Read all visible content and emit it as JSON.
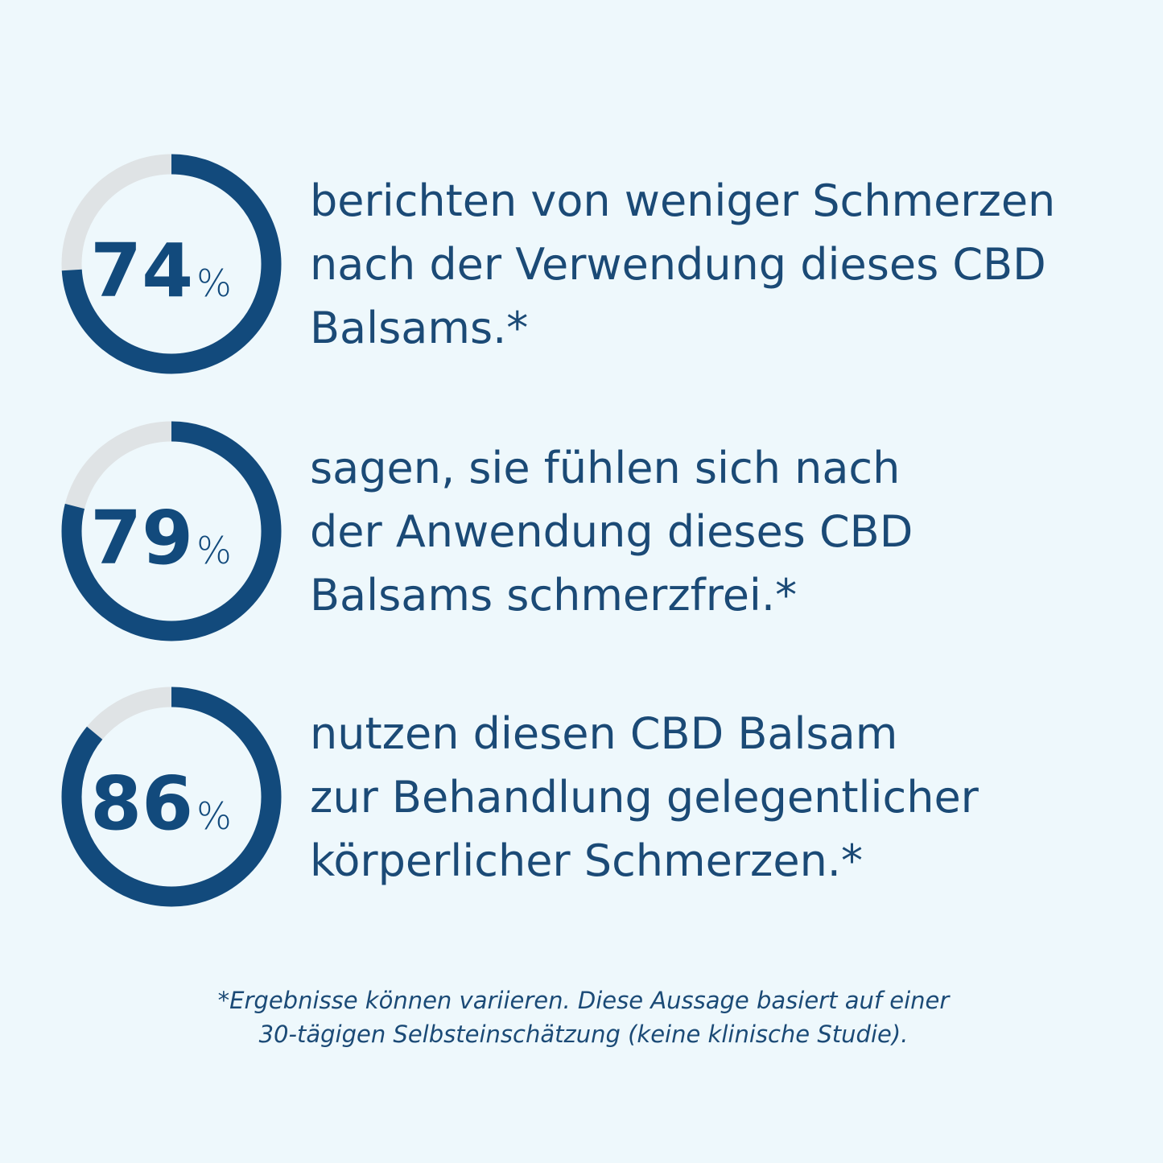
{
  "stats": [
    {
      "value": 74,
      "unit": "%",
      "lines": [
        "berichten von weniger Schmerzen",
        "nach der Verwendung dieses CBD",
        "Balsams.*"
      ]
    },
    {
      "value": 79,
      "unit": "%",
      "lines": [
        "sagen, sie fühlen sich nach",
        "der Anwendung dieses CBD",
        "Balsams schmerzfrei.*"
      ]
    },
    {
      "value": 86,
      "unit": "%",
      "lines": [
        "nutzen diesen CBD Balsam",
        "zur Behandlung gelegentlicher",
        "körperlicher Schmerzen.*"
      ]
    }
  ],
  "footnote": [
    "*Ergebnisse können variieren. Diese Aussage basiert auf einer",
    "30-tägigen Selbsteinschätzung (keine klinische Studie)."
  ]
}
